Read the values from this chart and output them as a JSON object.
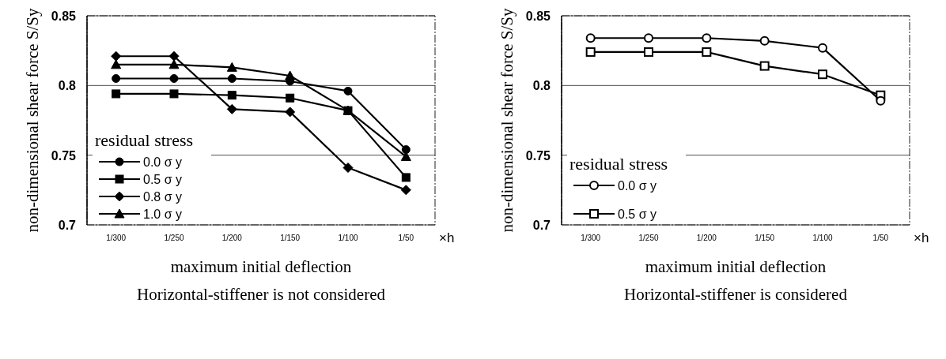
{
  "chart_data": [
    {
      "type": "line",
      "xlabel": "maximum initial deflection",
      "ylabel": "non-dimensional shear force S/Sy",
      "categories": [
        "1/300",
        "1/250",
        "1/200",
        "1/150",
        "1/100",
        "1/50"
      ],
      "ylim": [
        0.7,
        0.85
      ],
      "yticks": [
        0.7,
        0.75,
        0.8,
        0.85
      ],
      "grid": "y",
      "legend": "bottom left",
      "legend_title": "residual stress",
      "annotations": [
        "×h",
        "Horizontal-stiffener is not considered"
      ],
      "series": [
        {
          "name": "0.0 σ y",
          "color": "#000000",
          "marker": "circle",
          "values": [
            0.805,
            0.805,
            0.805,
            0.803,
            0.796,
            0.754
          ]
        },
        {
          "name": "0.5 σ y",
          "color": "#000000",
          "marker": "square",
          "values": [
            0.794,
            0.794,
            0.793,
            0.791,
            0.782,
            0.734
          ]
        },
        {
          "name": "0.8 σ y",
          "color": "#000000",
          "marker": "diamond",
          "values": [
            0.821,
            0.821,
            0.783,
            0.781,
            0.741,
            0.725
          ]
        },
        {
          "name": "1.0 σ y",
          "color": "#000000",
          "marker": "triangle",
          "values": [
            0.815,
            0.815,
            0.813,
            0.807,
            0.782,
            0.749
          ]
        }
      ]
    },
    {
      "type": "line",
      "xlabel": "maximum initial deflection",
      "ylabel": "non-dimensional shear force S/Sy",
      "categories": [
        "1/300",
        "1/250",
        "1/200",
        "1/150",
        "1/100",
        "1/50"
      ],
      "ylim": [
        0.7,
        0.85
      ],
      "yticks": [
        0.7,
        0.75,
        0.8,
        0.85
      ],
      "grid": "y",
      "legend": "bottom left",
      "legend_title": "residual stress",
      "annotations": [
        "×h",
        "Horizontal-stiffener is considered"
      ],
      "series": [
        {
          "name": "0.0 σ y",
          "color": "#000000",
          "marker": "circle",
          "values": [
            0.834,
            0.834,
            0.834,
            0.832,
            0.827,
            0.789
          ]
        },
        {
          "name": "0.5 σ y",
          "color": "#000000",
          "marker": "square",
          "values": [
            0.824,
            0.824,
            0.824,
            0.814,
            0.808,
            0.793
          ]
        }
      ]
    }
  ]
}
